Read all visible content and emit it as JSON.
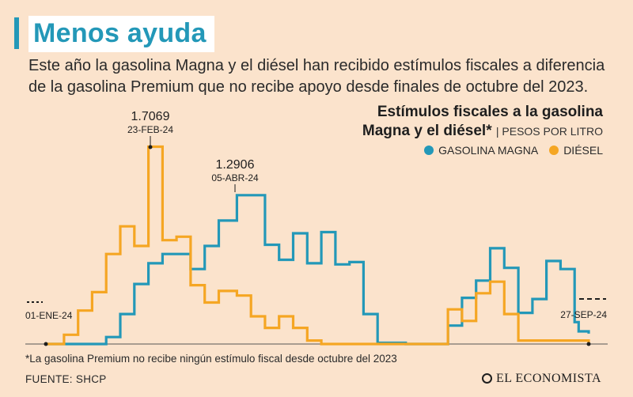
{
  "header": {
    "title": "Menos ayuda",
    "subtitle": "Este año la gasolina Magna y el diésel han recibido estímulos fiscales a diferencia de la gasolina Premium que no recibe apoyo desde finales de octubre del 2023."
  },
  "chart_title": {
    "line1": "Estímulos fiscales a la gasolina",
    "line2": "Magna y el diésel*",
    "unit": "| PESOS POR LITRO"
  },
  "legend": [
    {
      "label": "GASOLINA MAGNA",
      "color": "#2398b8"
    },
    {
      "label": "DIÉSEL",
      "color": "#f5a623"
    }
  ],
  "annotations": {
    "start_label": "01-ENE-24",
    "end_label": "27-SEP-24",
    "diesel_peak_value": "1.7069",
    "diesel_peak_date": "23-FEB-24",
    "magna_peak_value": "1.2906",
    "magna_peak_date": "05-ABR-24"
  },
  "footnote": "*La gasolina Premium no recibe ningún estímulo fiscal desde octubre del 2023",
  "source": "FUENTE: SHCP",
  "logo": "EL ECONOMISTA",
  "chart_data": {
    "type": "line",
    "step": true,
    "x_range": [
      "2024-01-01",
      "2024-09-27"
    ],
    "ylim": [
      0,
      1.8
    ],
    "series": [
      {
        "name": "GASOLINA MAGNA",
        "color": "#2398b8",
        "points": [
          [
            "2024-01-01",
            0
          ],
          [
            "2024-01-24",
            0
          ],
          [
            "2024-01-31",
            0.06
          ],
          [
            "2024-02-07",
            0.26
          ],
          [
            "2024-02-14",
            0.52
          ],
          [
            "2024-02-21",
            0.7
          ],
          [
            "2024-02-28",
            0.78
          ],
          [
            "2024-03-06",
            0.78
          ],
          [
            "2024-03-13",
            0.65
          ],
          [
            "2024-03-20",
            0.85
          ],
          [
            "2024-03-27",
            1.07
          ],
          [
            "2024-04-05",
            1.29
          ],
          [
            "2024-04-12",
            1.29
          ],
          [
            "2024-04-19",
            0.86
          ],
          [
            "2024-04-26",
            0.73
          ],
          [
            "2024-05-03",
            0.96
          ],
          [
            "2024-05-10",
            0.7
          ],
          [
            "2024-05-17",
            0.97
          ],
          [
            "2024-05-24",
            0.69
          ],
          [
            "2024-05-31",
            0.71
          ],
          [
            "2024-06-07",
            0.26
          ],
          [
            "2024-06-14",
            0.01
          ],
          [
            "2024-06-21",
            0.01
          ],
          [
            "2024-06-28",
            0
          ],
          [
            "2024-07-12",
            0
          ],
          [
            "2024-07-19",
            0.16
          ],
          [
            "2024-07-26",
            0.4
          ],
          [
            "2024-08-02",
            0.55
          ],
          [
            "2024-08-09",
            0.83
          ],
          [
            "2024-08-16",
            0.66
          ],
          [
            "2024-08-23",
            0.27
          ],
          [
            "2024-08-30",
            0.39
          ],
          [
            "2024-09-06",
            0.72
          ],
          [
            "2024-09-13",
            0.65
          ],
          [
            "2024-09-20",
            0.19
          ],
          [
            "2024-09-22",
            0.11
          ],
          [
            "2024-09-27",
            0.09
          ]
        ]
      },
      {
        "name": "DIÉSEL",
        "color": "#f5a623",
        "points": [
          [
            "2024-01-01",
            0
          ],
          [
            "2024-01-10",
            0.08
          ],
          [
            "2024-01-17",
            0.29
          ],
          [
            "2024-01-24",
            0.45
          ],
          [
            "2024-01-31",
            0.78
          ],
          [
            "2024-02-07",
            1.02
          ],
          [
            "2024-02-14",
            0.85
          ],
          [
            "2024-02-21",
            1.71
          ],
          [
            "2024-02-28",
            0.9
          ],
          [
            "2024-03-06",
            0.93
          ],
          [
            "2024-03-13",
            0.51
          ],
          [
            "2024-03-20",
            0.36
          ],
          [
            "2024-03-27",
            0.46
          ],
          [
            "2024-04-05",
            0.42
          ],
          [
            "2024-04-12",
            0.24
          ],
          [
            "2024-04-19",
            0.14
          ],
          [
            "2024-04-26",
            0.24
          ],
          [
            "2024-05-03",
            0.14
          ],
          [
            "2024-05-10",
            0.03
          ],
          [
            "2024-05-17",
            0
          ],
          [
            "2024-07-19",
            0.3
          ],
          [
            "2024-07-26",
            0.2
          ],
          [
            "2024-08-02",
            0.44
          ],
          [
            "2024-08-09",
            0.54
          ],
          [
            "2024-08-16",
            0.26
          ],
          [
            "2024-08-23",
            0.03
          ],
          [
            "2024-09-27",
            0
          ]
        ]
      }
    ]
  }
}
